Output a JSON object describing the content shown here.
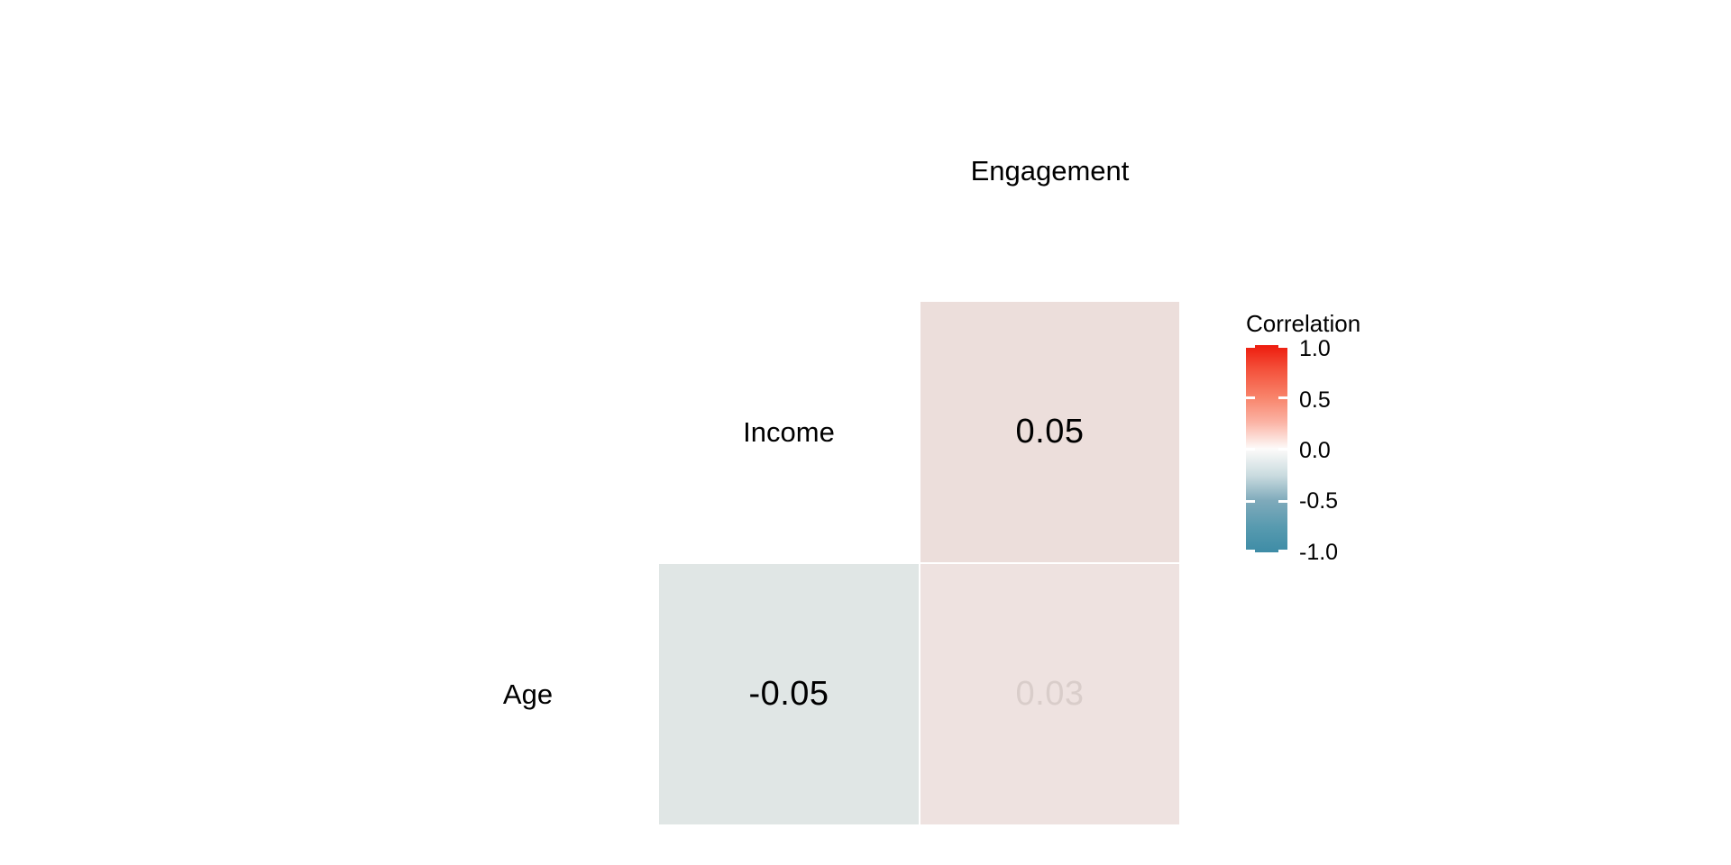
{
  "figure": {
    "background": "#FFFFFF"
  },
  "chart_data": {
    "type": "heatmap",
    "subtype": "correlation-matrix-lower-triangle",
    "title": "",
    "variables": [
      "Age",
      "Income",
      "Engagement"
    ],
    "diagonal_labels": {
      "engagement": "Engagement",
      "income": "Income",
      "age": "Age"
    },
    "cells": [
      {
        "row_var": "Income",
        "col_var": "Engagement",
        "value": 0.05,
        "label": "0.05",
        "fill": "#ECDEDB",
        "label_color": "#000000"
      },
      {
        "row_var": "Age",
        "col_var": "Income",
        "value": -0.05,
        "label": "-0.05",
        "fill": "#E0E6E5",
        "label_color": "#000000"
      },
      {
        "row_var": "Age",
        "col_var": "Engagement",
        "value": 0.03,
        "label": "0.03",
        "fill": "#EEE2E0",
        "label_color": "#D9CDCA"
      }
    ],
    "grid": {
      "gridlines": false,
      "axes_lines": false,
      "cell_border_color": "#FFFFFF"
    },
    "legend": {
      "title": "Correlation",
      "position": "right",
      "limits": [
        -1.0,
        1.0
      ],
      "ticks": [
        "1.0",
        "0.5",
        "0.0",
        "-0.5",
        "-1.0"
      ],
      "tick_values": [
        1.0,
        0.5,
        0.0,
        -0.5,
        -1.0
      ],
      "tick_mark_color": "#FFFFFF",
      "gradient_stops": [
        {
          "pos": "0%",
          "color": "#ED1B0D"
        },
        {
          "pos": "12%",
          "color": "#F4523C"
        },
        {
          "pos": "25%",
          "color": "#F8836A"
        },
        {
          "pos": "37%",
          "color": "#FBB2A3"
        },
        {
          "pos": "50%",
          "color": "#FDFBFA"
        },
        {
          "pos": "63%",
          "color": "#C9DBDF"
        },
        {
          "pos": "75%",
          "color": "#7FAABB"
        },
        {
          "pos": "88%",
          "color": "#579AAF"
        },
        {
          "pos": "100%",
          "color": "#3E8CA6"
        }
      ]
    }
  }
}
